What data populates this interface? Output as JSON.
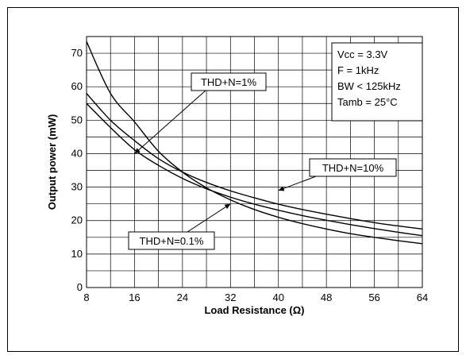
{
  "chart_data": {
    "type": "line",
    "title": "",
    "xlabel": "Load Resistance (Ω)",
    "ylabel": "Output power (mW)",
    "xlim": [
      8,
      64
    ],
    "ylim": [
      0,
      75
    ],
    "x_ticks": [
      "8",
      "16",
      "24",
      "32",
      "40",
      "48",
      "56",
      "64"
    ],
    "y_ticks": [
      "0",
      "10",
      "20",
      "30",
      "40",
      "50",
      "60",
      "70"
    ],
    "grid": "on",
    "series": [
      {
        "name": "THD+N=1%",
        "x": [
          8,
          12,
          16,
          20,
          24,
          28,
          32,
          36,
          40,
          44,
          48,
          52,
          56,
          60,
          64
        ],
        "y": [
          73.5,
          58.0,
          49.5,
          40.7,
          34.5,
          29.8,
          26.2,
          23.3,
          21.0,
          19.1,
          17.5,
          16.1,
          15.0,
          14.0,
          13.1
        ]
      },
      {
        "name": "THD+N=10%",
        "x": [
          8,
          12,
          16,
          20,
          24,
          28,
          32,
          36,
          40,
          44,
          48,
          52,
          56,
          60,
          64
        ],
        "y": [
          58.0,
          50.0,
          43.9,
          38.5,
          34.5,
          31.4,
          28.9,
          26.8,
          24.9,
          23.3,
          21.9,
          20.6,
          19.4,
          18.4,
          17.5
        ]
      },
      {
        "name": "THD+N=0.1%",
        "x": [
          8,
          12,
          16,
          20,
          24,
          28,
          32,
          36,
          40,
          44,
          48,
          52,
          56,
          60,
          64
        ],
        "y": [
          55.0,
          47.8,
          41.2,
          36.5,
          32.6,
          29.5,
          27.0,
          24.9,
          23.1,
          21.5,
          20.1,
          18.8,
          17.6,
          16.5,
          15.5
        ]
      }
    ],
    "callouts": [
      {
        "label": "THD+N=1%",
        "target_x": 16,
        "target_y": 40
      },
      {
        "label": "THD+N=10%",
        "target_x": 40,
        "target_y": 29
      },
      {
        "label": "THD+N=0.1%",
        "target_x": 32,
        "target_y": 25
      }
    ],
    "legend": [
      "Vcc = 3.3V",
      "F = 1kHz",
      "BW < 125kHz",
      "Tamb = 25°C"
    ],
    "legend_position": "top-right"
  }
}
